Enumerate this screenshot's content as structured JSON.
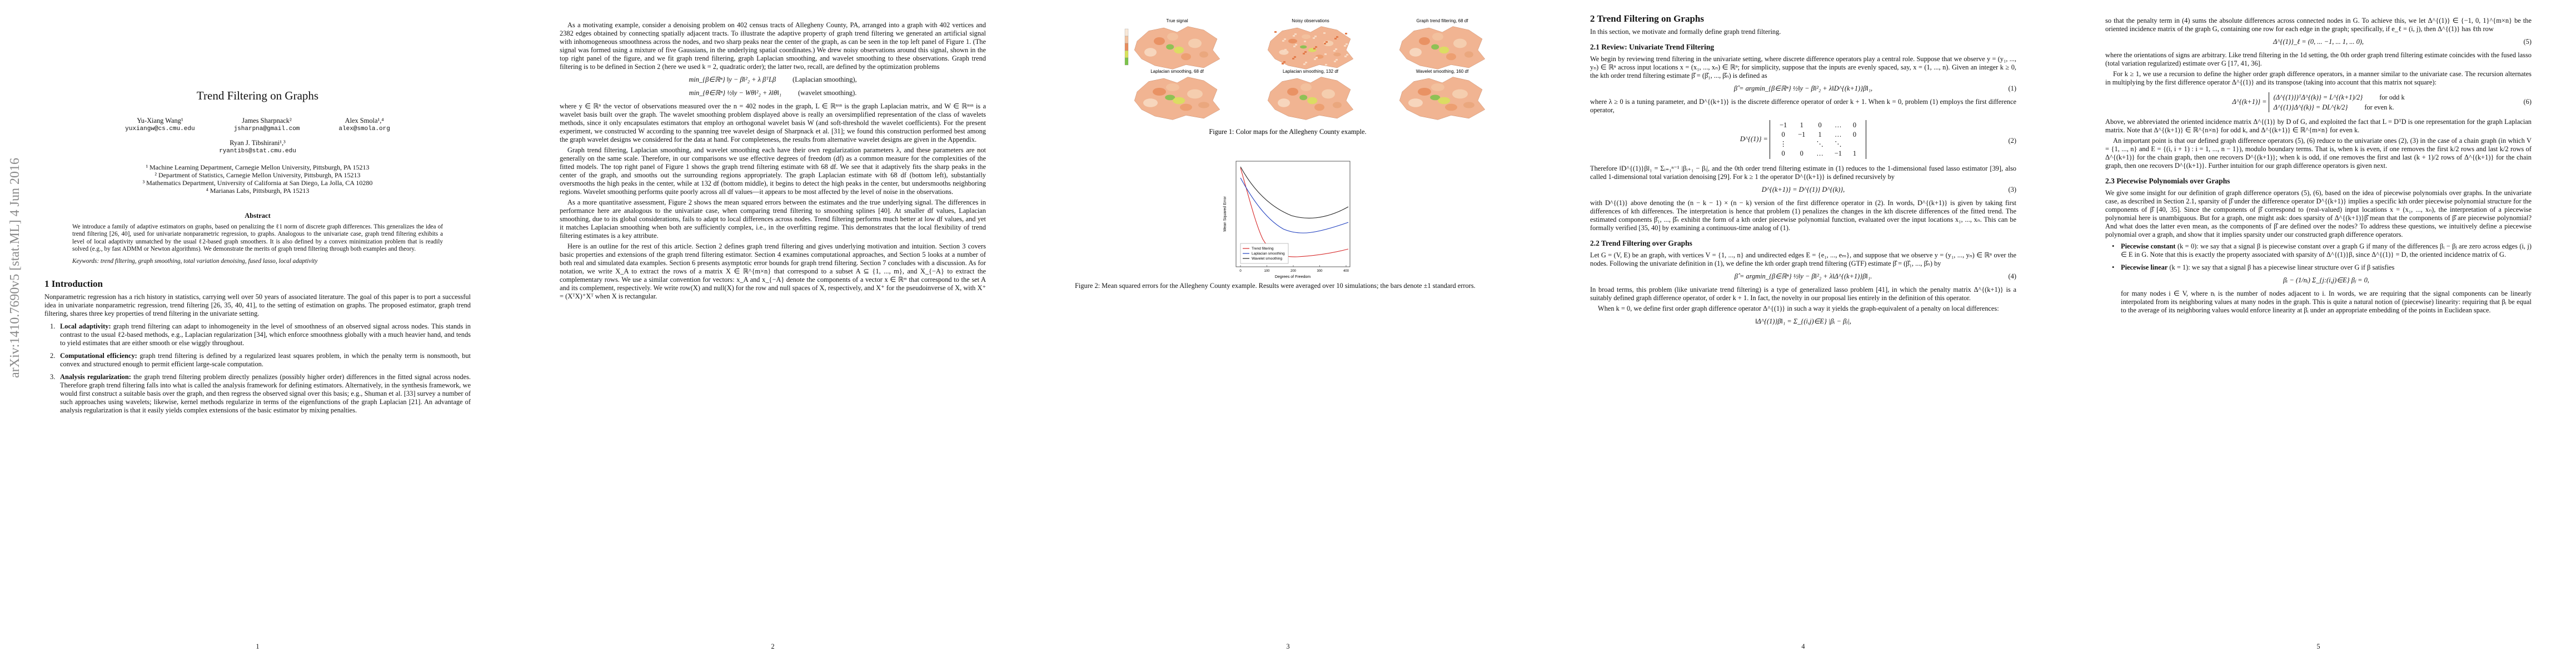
{
  "arxiv_stamp": "arXiv:1410.7690v5  [stat.ML]  4 Jun 2016",
  "page1": {
    "title": "Trend Filtering on Graphs",
    "authors": [
      {
        "name": "Yu-Xiang Wang¹",
        "email": "yuxiangw@cs.cmu.edu"
      },
      {
        "name": "James Sharpnack²",
        "email": "jsharpna@gmail.com"
      },
      {
        "name": "Alex Smola¹,⁴",
        "email": "alex@smola.org"
      },
      {
        "name": "Ryan J. Tibshirani¹,³",
        "email": "ryantibs@stat.cmu.edu"
      }
    ],
    "affiliations": [
      "¹ Machine Learning Department, Carnegie Mellon University, Pittsburgh, PA 15213",
      "² Department of Statistics, Carnegie Mellon University, Pittsburgh, PA 15213",
      "³ Mathematics Department, University of California at San Diego, La Jolla, CA 10280",
      "⁴ Marianas Labs, Pittsburgh, PA 15213"
    ],
    "abstract_heading": "Abstract",
    "abstract": "We introduce a family of adaptive estimators on graphs, based on penalizing the ℓ1 norm of discrete graph differences. This generalizes the idea of trend filtering [26, 40], used for univariate nonparametric regression, to graphs. Analogous to the univariate case, graph trend filtering exhibits a level of local adaptivity unmatched by the usual ℓ2-based graph smoothers. It is also defined by a convex minimization problem that is readily solved (e.g., by fast ADMM or Newton algorithms). We demonstrate the merits of graph trend filtering through both examples and theory.",
    "keywords_label": "Keywords:",
    "keywords": "trend filtering, graph smoothing, total variation denoising, fused lasso, local adaptivity",
    "section": "1   Introduction",
    "intro": "Nonparametric regression has a rich history in statistics, carrying well over 50 years of associated literature. The goal of this paper is to port a successful idea in univariate nonparametric regression, trend filtering [26, 35, 40, 41], to the setting of estimation on graphs. The proposed estimator, graph trend filtering, shares three key properties of trend filtering in the univariate setting.",
    "list": [
      {
        "num": "1.",
        "label": "Local adaptivity:",
        "text": "graph trend filtering can adapt to inhomogeneity in the level of smoothness of an observed signal across nodes. This stands in contrast to the usual ℓ2-based methods, e.g., Laplacian regularization [34], which enforce smoothness globally with a much heavier hand, and tends to yield estimates that are either smooth or else wiggly throughout."
      },
      {
        "num": "2.",
        "label": "Computational efficiency:",
        "text": "graph trend filtering is defined by a regularized least squares problem, in which the penalty term is nonsmooth, but convex and structured enough to permit efficient large-scale computation."
      },
      {
        "num": "3.",
        "label": "Analysis regularization:",
        "text": "the graph trend filtering problem directly penalizes (possibly higher order) differences in the fitted signal across nodes. Therefore graph trend filtering falls into what is called the analysis framework for defining estimators. Alternatively, in the synthesis framework, we would first construct a suitable basis over the graph, and then regress the observed signal over this basis; e.g., Shuman et al. [33] survey a number of such approaches using wavelets; likewise, kernel methods regularize in terms of the eigenfunctions of the graph Laplacian [21]. An advantage of analysis regularization is that it easily yields complex extensions of the basic estimator by mixing penalties."
      }
    ],
    "number": "1"
  },
  "page2": {
    "p1": "As a motivating example, consider a denoising problem on 402 census tracts of Allegheny County, PA, arranged into a graph with 402 vertices and 2382 edges obtained by connecting spatially adjacent tracts. To illustrate the adaptive property of graph trend filtering we generated an artificial signal with inhomogeneous smoothness across the nodes, and two sharp peaks near the center of the graph, as can be seen in the top left panel of Figure 1. (The signal was formed using a mixture of five Gaussians, in the underlying spatial coordinates.) We drew noisy observations around this signal, shown in the top right panel of the figure, and we fit graph trend filtering, graph Laplacian smoothing, and wavelet smoothing to these observations. Graph trend filtering is to be defined in Section 2 (here we used k = 2, quadratic order); the latter two, recall, are defined by the optimization problems",
    "eq_a": "min_{β∈ℝⁿ}  ‖y − β‖²₂ + λ βᵀLβ",
    "eq_a_note": "(Laplacian smoothing),",
    "eq_b": "min_{θ∈ℝⁿ}  ½‖y − Wθ‖²₂ + λ‖θ‖₁",
    "eq_b_note": "(wavelet smoothing).",
    "p2": "where y ∈ ℝⁿ the vector of observations measured over the n = 402 nodes in the graph, L ∈ ℝⁿˣⁿ is the graph Laplacian matrix, and W ∈ ℝⁿˣⁿ is a wavelet basis built over the graph. The wavelet smoothing problem displayed above is really an oversimplified representation of the class of wavelets methods, since it only encapsulates estimators that employ an orthogonal wavelet basis W (and soft-threshold the wavelet coefficients). For the present experiment, we constructed W according to the spanning tree wavelet design of Sharpnack et al. [31]; we found this construction performed best among the graph wavelet designs we considered for the data at hand. For completeness, the results from alternative wavelet designs are given in the Appendix.",
    "p3": "Graph trend filtering, Laplacian smoothing, and wavelet smoothing each have their own regularization parameters λ, and these parameters are not generally on the same scale. Therefore, in our comparisons we use effective degrees of freedom (df) as a common measure for the complexities of the fitted models. The top right panel of Figure 1 shows the graph trend filtering estimate with 68 df. We see that it adaptively fits the sharp peaks in the center of the graph, and smooths out the surrounding regions appropriately. The graph Laplacian estimate with 68 df (bottom left), substantially oversmooths the high peaks in the center, while at 132 df (bottom middle), it begins to detect the high peaks in the center, but undersmooths neighboring regions. Wavelet smoothing performs quite poorly across all df values—it appears to be most affected by the level of noise in the observations.",
    "p4": "As a more quantitative assessment, Figure 2 shows the mean squared errors between the estimates and the true underlying signal. The differences in performance here are analogous to the univariate case, when comparing trend filtering to smoothing splines [40]. At smaller df values, Laplacian smoothing, due to its global considerations, fails to adapt to local differences across nodes. Trend filtering performs much better at low df values, and yet it matches Laplacian smoothing when both are sufficiently complex, i.e., in the overfitting regime. This demonstrates that the local flexibility of trend filtering estimates is a key attribute.",
    "p5": "Here is an outline for the rest of this article. Section 2 defines graph trend filtering and gives underlying motivation and intuition. Section 3 covers basic properties and extensions of the graph trend filtering estimator. Section 4 examines computational approaches, and Section 5 looks at a number of both real and simulated data examples. Section 6 presents asymptotic error bounds for graph trend filtering. Section 7 concludes with a discussion. As for notation, we write X_A to extract the rows of a matrix X ∈ ℝ^{m×n} that correspond to a subset A ⊆ {1, ..., m}, and X_{−A} to extract the complementary rows. We use a similar convention for vectors: x_A and x_{−A} denote the components of a vector x ∈ ℝᵐ that correspond to the set A and its complement, respectively. We write row(X) and null(X) for the row and null spaces of X, respectively, and X⁺ for the pseudoinverse of X, with X⁺ = (XᵀX)⁺Xᵀ when X is rectangular.",
    "number": "2"
  },
  "page3": {
    "map_titles": [
      "True signal",
      "Noisy observations",
      "Graph trend filtering, 68 df",
      "Laplacian smoothing, 68 df",
      "Laplacian smoothing, 132 df",
      "Wavelet smoothing, 160 df"
    ],
    "figure1_caption": "Figure 1: Color maps for the Allegheny County example.",
    "figure2": {
      "xlabel": "Degrees of Freedom",
      "ylabel": "Mean Squared Error",
      "legend": [
        "Trend filtering",
        "Laplacian smoothing",
        "Wavelet smoothing"
      ],
      "xticks": [
        0,
        100,
        200,
        300,
        400
      ]
    },
    "figure2_caption": "Figure 2: Mean squared errors for the Allegheny County example. Results were averaged over 10 simulations; the bars denote ±1 standard errors.",
    "number": "3"
  },
  "page4": {
    "section": "2   Trend Filtering on Graphs",
    "intro": "In this section, we motivate and formally define graph trend filtering.",
    "sub1": "2.1   Review: Univariate Trend Filtering",
    "p1": "We begin by reviewing trend filtering in the univariate setting, where discrete difference operators play a central role. Suppose that we observe y = (y₁, ..., yₙ) ∈ ℝⁿ across input locations x = (x₁, ..., xₙ) ∈ ℝⁿ; for simplicity, suppose that the inputs are evenly spaced, say, x = (1, ..., n). Given an integer k ≥ 0, the kth order trend filtering estimate β̂ = (β̂₁, ..., β̂ₙ) is defined as",
    "eq1": "β̂ = argmin_{β∈ℝⁿ}  ½‖y − β‖²₂ + λ‖D^{(k+1)}β‖₁,",
    "eq1_num": "(1)",
    "p2": "where λ ≥ 0 is a tuning parameter, and D^{(k+1)} is the discrete difference operator of order k + 1. When k = 0, problem (1) employs the first difference operator,",
    "eq2_lhs": "D^{(1)} =",
    "matrix": [
      [
        "−1",
        "1",
        "0",
        "…",
        "0"
      ],
      [
        "0",
        "−1",
        "1",
        "…",
        "0"
      ],
      [
        "⋮",
        "",
        "⋱",
        "⋱",
        ""
      ],
      [
        "0",
        "0",
        "…",
        "−1",
        "1"
      ]
    ],
    "eq2_num": "(2)",
    "p3": "Therefore ‖D^{(1)}β‖₁ = Σᵢ₌₁ⁿ⁻¹ |βᵢ₊₁ − βᵢ|, and the 0th order trend filtering estimate in (1) reduces to the 1-dimensional fused lasso estimator [39], also called 1-dimensional total variation denoising [29]. For k ≥ 1 the operator D^{(k+1)} is defined recursively by",
    "eq3": "D^{(k+1)} = D^{(1)} D^{(k)},",
    "eq3_num": "(3)",
    "p4": "with D^{(1)} above denoting the (n − k − 1) × (n − k) version of the first difference operator in (2). In words, D^{(k+1)} is given by taking first differences of kth differences. The interpretation is hence that problem (1) penalizes the changes in the kth discrete differences of the fitted trend. The estimated components β̂₁, ..., β̂ₙ exhibit the form of a kth order piecewise polynomial function, evaluated over the input locations x₁, ..., xₙ. This can be formally verified [35, 40] by examining a continuous-time analog of (1).",
    "sub2": "2.2   Trend Filtering over Graphs",
    "p5": "Let G = (V, E) be an graph, with vertices V = {1, ..., n} and undirected edges E = {e₁, ..., eₘ}, and suppose that we observe y = (y₁, ..., yₙ) ∈ ℝⁿ over the nodes. Following the univariate definition in (1), we define the kth order graph trend filtering (GTF) estimate β̂ = (β̂₁, ..., β̂ₙ) by",
    "eq4": "β̂ = argmin_{β∈ℝⁿ}  ½‖y − β‖²₂ + λ‖Δ^{(k+1)}β‖₁.",
    "eq4_num": "(4)",
    "p6": "In broad terms, this problem (like univariate trend filtering) is a type of generalized lasso problem [41], in which the penalty matrix Δ^{(k+1)} is a suitably defined graph difference operator, of order k + 1. In fact, the novelty in our proposal lies entirely in the definition of this operator.",
    "p7": "When k = 0, we define first order graph difference operator Δ^{(1)} in such a way it yields the graph-equivalent of a penalty on local differences:",
    "eq_tv": "‖Δ^{(1)}β‖₁ = Σ_{(i,j)∈E} |βᵢ − βⱼ|,",
    "number": "4"
  },
  "page5": {
    "p1": "so that the penalty term in (4) sums the absolute differences across connected nodes in G. To achieve this, we let Δ^{(1)} ∈ {−1, 0, 1}^{m×n} be the oriented incidence matrix of the graph G, containing one row for each edge in the graph; specifically, if e_ℓ = (i, j), then Δ^{(1)} has ℓth row",
    "eq5": "Δ^{(1)}_ℓ = (0, ...  −1, ...  1, ...  0),",
    "eq5_num": "(5)",
    "p2": "where the orientations of signs are arbitrary. Like trend filtering in the 1d setting, the 0th order graph trend filtering estimate coincides with the fused lasso (total variation regularized) estimate over G [17, 41, 36].",
    "p3": "For k ≥ 1, we use a recursion to define the higher order graph difference operators, in a manner similar to the univariate case. The recursion alternates in multiplying by the first difference operator Δ^{(1)} and its transpose (taking into account that this matrix not square):",
    "eq6_lhs": "Δ^{(k+1)} =",
    "eq6_odd": "(Δ^{(1)})ᵀΔ^{(k)} = L^{(k+1)/2}",
    "eq6_odd_note": "for odd k",
    "eq6_even": "Δ^{(1)}Δ^{(k)} = DL^{k/2}",
    "eq6_even_note": "for even k.",
    "eq6_num": "(6)",
    "p4": "Above, we abbreviated the oriented incidence matrix Δ^{(1)} by D of G, and exploited the fact that L = DᵀD is one representation for the graph Laplacian matrix. Note that Δ^{(k+1)} ∈ ℝ^{n×n} for odd k, and Δ^{(k+1)} ∈ ℝ^{m×n} for even k.",
    "p5": "An important point is that our defined graph difference operators (5), (6) reduce to the univariate ones (2), (3) in the case of a chain graph (in which V = {1, ..., n} and E = {(i, i + 1) : i = 1, ..., n − 1}), modulo boundary terms. That is, when k is even, if one removes the first k/2 rows and last k/2 rows of Δ^{(k+1)} for the chain graph, then one recovers D^{(k+1)}; when k is odd, if one removes the first and last (k + 1)/2 rows of Δ^{(k+1)} for the chain graph, then one recovers D^{(k+1)}. Further intuition for our graph difference operators is given next.",
    "sub3": "2.3   Piecewise Polynomials over Graphs",
    "p6": "We give some insight for our definition of graph difference operators (5), (6), based on the idea of piecewise polynomials over graphs. In the univariate case, as described in Section 2.1, sparsity of β̂ under the difference operator D^{(k+1)} implies a specific kth order piecewise polynomial structure for the components of β̂ [40, 35]. Since the components of β̂ correspond to (real-valued) input locations x = (x₁, ..., xₙ), the interpretation of a piecewise polynomial here is unambiguous. But for a graph, one might ask: does sparsity of Δ^{(k+1)}β̂ mean that the components of β̂ are piecewise polynomial? And what does the latter even mean, as the components of β̂ are defined over the nodes? To address these questions, we intuitively define a piecewise polynomial over a graph, and show that it implies sparsity under our constructed graph difference operators.",
    "bullets": [
      {
        "label": "Piecewise constant",
        "text": "(k = 0): we say that a signal β is piecewise constant over a graph G if many of the differences βᵢ − βⱼ are zero across edges (i, j) ∈ E in G. Note that this is exactly the property associated with sparsity of Δ^{(1)}β, since Δ^{(1)} = D, the oriented incidence matrix of G."
      },
      {
        "label": "Piecewise linear",
        "text": "(k = 1): we say that a signal β has a piecewise linear structure over G if β satisfies"
      }
    ],
    "eq_pl": "βᵢ − (1/nᵢ) Σ_{j:(i,j)∈E} βⱼ = 0,",
    "p7": "for many nodes i ∈ V, where nᵢ is the number of nodes adjacent to i. In words, we are requiring that the signal components can be linearly interpolated from its neighboring values at many nodes in the graph. This is quite a natural notion of (piecewise) linearity: requiring that βᵢ be equal to the average of its neighboring values would enforce linearity at βᵢ under an appropriate embedding of the points in Euclidean space.",
    "number": "5"
  }
}
